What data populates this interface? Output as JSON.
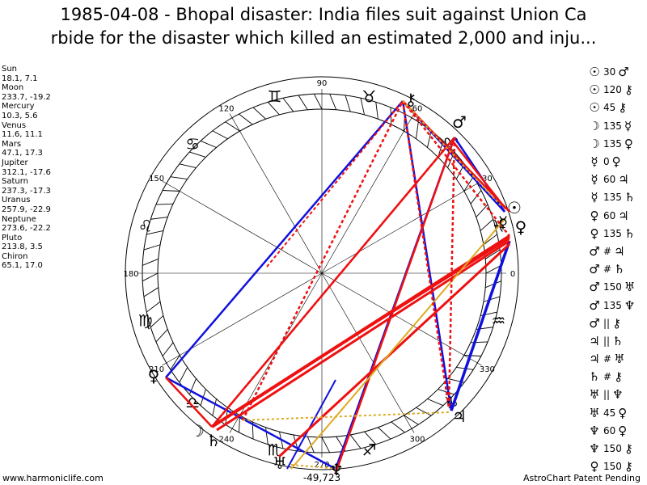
{
  "title_line1": "1985-04-08 - Bhopal disaster: India files suit against Union Ca",
  "title_line2": "rbide for the disaster which killed an estimated 2,000 and inju...",
  "planets": [
    {
      "name": "Sun",
      "coords": "18.1, 7.1"
    },
    {
      "name": "Moon",
      "coords": "233.7, -19.2"
    },
    {
      "name": "Mercury",
      "coords": "10.3, 5.6"
    },
    {
      "name": "Venus",
      "coords": "11.6, 11.1"
    },
    {
      "name": "Mars",
      "coords": "47.1, 17.3"
    },
    {
      "name": "Jupiter",
      "coords": "312.1, -17.6"
    },
    {
      "name": "Saturn",
      "coords": "237.3, -17.3"
    },
    {
      "name": "Uranus",
      "coords": "257.9, -22.9"
    },
    {
      "name": "Neptune",
      "coords": "273.6, -22.2"
    },
    {
      "name": "Pluto",
      "coords": "213.8, 3.5"
    },
    {
      "name": "Chiron",
      "coords": "65.1, 17.0"
    }
  ],
  "aspects": [
    {
      "p1": "☉",
      "sym": "30",
      "p2": "♂"
    },
    {
      "p1": "☉",
      "sym": "120",
      "p2": "⚷"
    },
    {
      "p1": "☉",
      "sym": "45",
      "p2": "⚷"
    },
    {
      "p1": "☽",
      "sym": "135",
      "p2": "☿"
    },
    {
      "p1": "☽",
      "sym": "135",
      "p2": "♀"
    },
    {
      "p1": "☿",
      "sym": "0",
      "p2": "♀"
    },
    {
      "p1": "☿",
      "sym": "60",
      "p2": "♃"
    },
    {
      "p1": "☿",
      "sym": "135",
      "p2": "♄"
    },
    {
      "p1": "♀",
      "sym": "60",
      "p2": "♃"
    },
    {
      "p1": "♀",
      "sym": "135",
      "p2": "♄"
    },
    {
      "p1": "♂",
      "sym": "#",
      "p2": "♃"
    },
    {
      "p1": "♂",
      "sym": "#",
      "p2": "♄"
    },
    {
      "p1": "♂",
      "sym": "150",
      "p2": "♅"
    },
    {
      "p1": "♂",
      "sym": "135",
      "p2": "♆"
    },
    {
      "p1": "♂",
      "sym": "||",
      "p2": "⚷"
    },
    {
      "p1": "♃",
      "sym": "||",
      "p2": "♄"
    },
    {
      "p1": "♃",
      "sym": "#",
      "p2": "♅"
    },
    {
      "p1": "♄",
      "sym": "#",
      "p2": "⚷"
    },
    {
      "p1": "♅",
      "sym": "||",
      "p2": "♆"
    },
    {
      "p1": "♅",
      "sym": "45",
      "p2": "♀"
    },
    {
      "p1": "♆",
      "sym": "60",
      "p2": "♀"
    },
    {
      "p1": "♆",
      "sym": "150",
      "p2": "⚷"
    },
    {
      "p1": "♀",
      "sym": "150",
      "p2": "⚷"
    }
  ],
  "wheel": {
    "degree_labels": [
      "0",
      "30",
      "60",
      "90",
      "120",
      "150",
      "180",
      "210",
      "240",
      "270",
      "300",
      "330"
    ],
    "zodiac_signs": [
      "♓",
      "♈",
      "♉",
      "♊",
      "♋",
      "♌",
      "♍",
      "♎",
      "♏",
      "♐",
      "♑",
      "♒"
    ],
    "planet_glyphs": {
      "sun": "☉",
      "moon": "☽",
      "mercury": "☿",
      "venus": "♀",
      "mars": "♂",
      "jupiter": "♃",
      "saturn": "♄",
      "uranus": "♅",
      "neptune": "♆",
      "pluto": "♀",
      "chiron": "⚷"
    },
    "center_readout": "-49,723"
  },
  "colors": {
    "red": "#ee1111",
    "blue": "#1111dd",
    "gold": "#ddaa22"
  },
  "footer_left": "www.harmoniclife.com",
  "footer_right": "AstroChart Patent Pending"
}
